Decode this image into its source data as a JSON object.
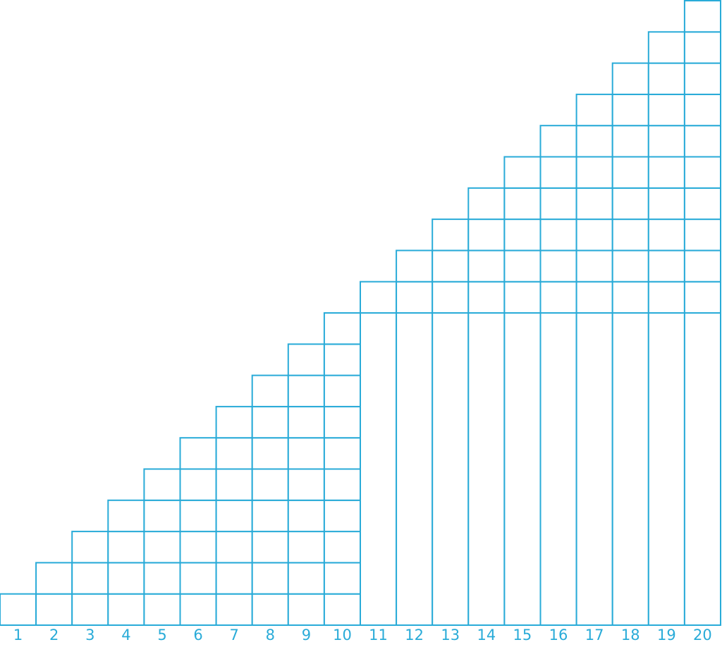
{
  "diagram": {
    "colors": {
      "line": "#29abd8",
      "label": "#29abd8",
      "background": "#ffffff"
    },
    "columns": [
      {
        "label": "1",
        "squares": 1,
        "extends_to_top_of": null
      },
      {
        "label": "2",
        "squares": 2,
        "extends_to_top_of": null
      },
      {
        "label": "3",
        "squares": 3,
        "extends_to_top_of": null
      },
      {
        "label": "4",
        "squares": 4,
        "extends_to_top_of": null
      },
      {
        "label": "5",
        "squares": 5,
        "extends_to_top_of": null
      },
      {
        "label": "6",
        "squares": 6,
        "extends_to_top_of": null
      },
      {
        "label": "7",
        "squares": 7,
        "extends_to_top_of": null
      },
      {
        "label": "8",
        "squares": 8,
        "extends_to_top_of": null
      },
      {
        "label": "9",
        "squares": 9,
        "extends_to_top_of": null
      },
      {
        "label": "10",
        "squares": 10,
        "extends_to_top_of": null
      },
      {
        "label": "11",
        "squares": 1,
        "extends_to_top_of": 10
      },
      {
        "label": "12",
        "squares": 2,
        "extends_to_top_of": 10
      },
      {
        "label": "13",
        "squares": 3,
        "extends_to_top_of": 10
      },
      {
        "label": "14",
        "squares": 4,
        "extends_to_top_of": 10
      },
      {
        "label": "15",
        "squares": 5,
        "extends_to_top_of": 10
      },
      {
        "label": "16",
        "squares": 6,
        "extends_to_top_of": 10
      },
      {
        "label": "17",
        "squares": 7,
        "extends_to_top_of": 10
      },
      {
        "label": "18",
        "squares": 8,
        "extends_to_top_of": 10
      },
      {
        "label": "19",
        "squares": 9,
        "extends_to_top_of": 10
      },
      {
        "label": "20",
        "squares": 10,
        "extends_to_top_of": 10
      }
    ]
  }
}
